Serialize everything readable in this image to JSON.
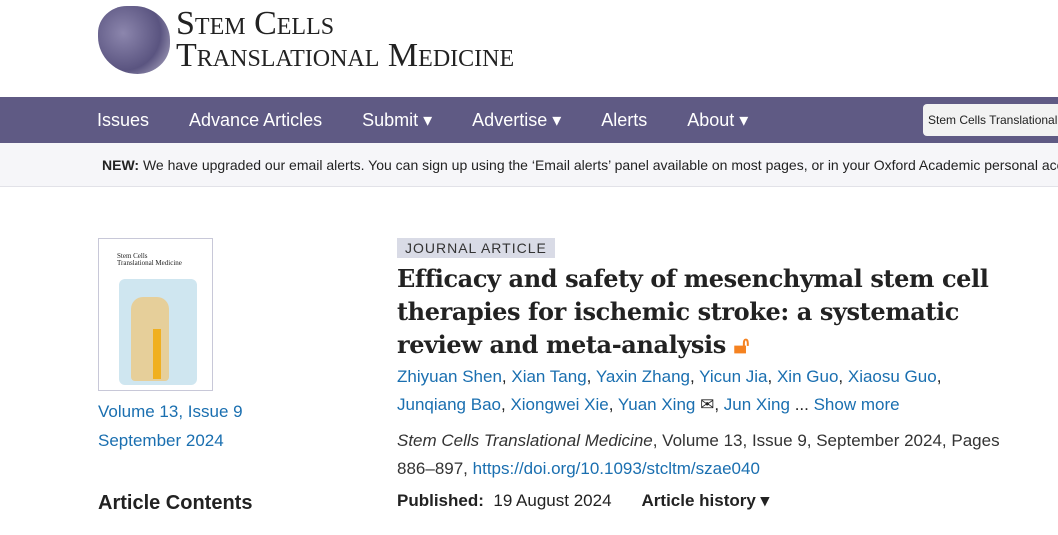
{
  "brand": {
    "line1": "Stem Cells",
    "line2": "Translational Medicine"
  },
  "nav": {
    "items": [
      "Issues",
      "Advance Articles",
      "Submit ▾",
      "Advertise ▾",
      "Alerts",
      "About ▾"
    ],
    "search_value": "Stem Cells Translational Medicine"
  },
  "notice": {
    "label": "NEW:",
    "text": " We have upgraded our email alerts. You can sign up using the ‘Email alerts’ panel available on most pages, or in your Oxford Academic personal account."
  },
  "sidebar": {
    "cover_title_1": "Stem Cells",
    "cover_title_2": "Translational Medicine",
    "issue": "Volume 13, Issue 9",
    "date": "September 2024",
    "contents": "Article Contents"
  },
  "article": {
    "type": "JOURNAL ARTICLE",
    "title": "Efficacy and safety of mesenchymal stem cell therapies for ischemic stroke: a systematic review and meta-analysis",
    "open_access_icon": "open-lock",
    "authors": [
      "Zhiyuan Shen",
      "Xian Tang",
      "Yaxin Zhang",
      "Yicun Jia",
      "Xin Guo",
      "Xiaosu Guo",
      "Junqiang Bao",
      "Xiongwei Xie",
      "Yuan Xing",
      "Jun Xing"
    ],
    "ellipsis": " ... ",
    "show_more": "Show more",
    "journal": "Stem Cells Translational Medicine",
    "citation": ", Volume 13, Issue 9, September 2024, Pages 886–897, ",
    "doi": "https://doi.org/10.1093/stcltm/szae040",
    "published_label": "Published:",
    "published_date": "19 August 2024",
    "history": "Article history ▾"
  },
  "colors": {
    "nav": "#5f5a84",
    "link": "#1a6fb0",
    "open_access": "#f58220"
  }
}
